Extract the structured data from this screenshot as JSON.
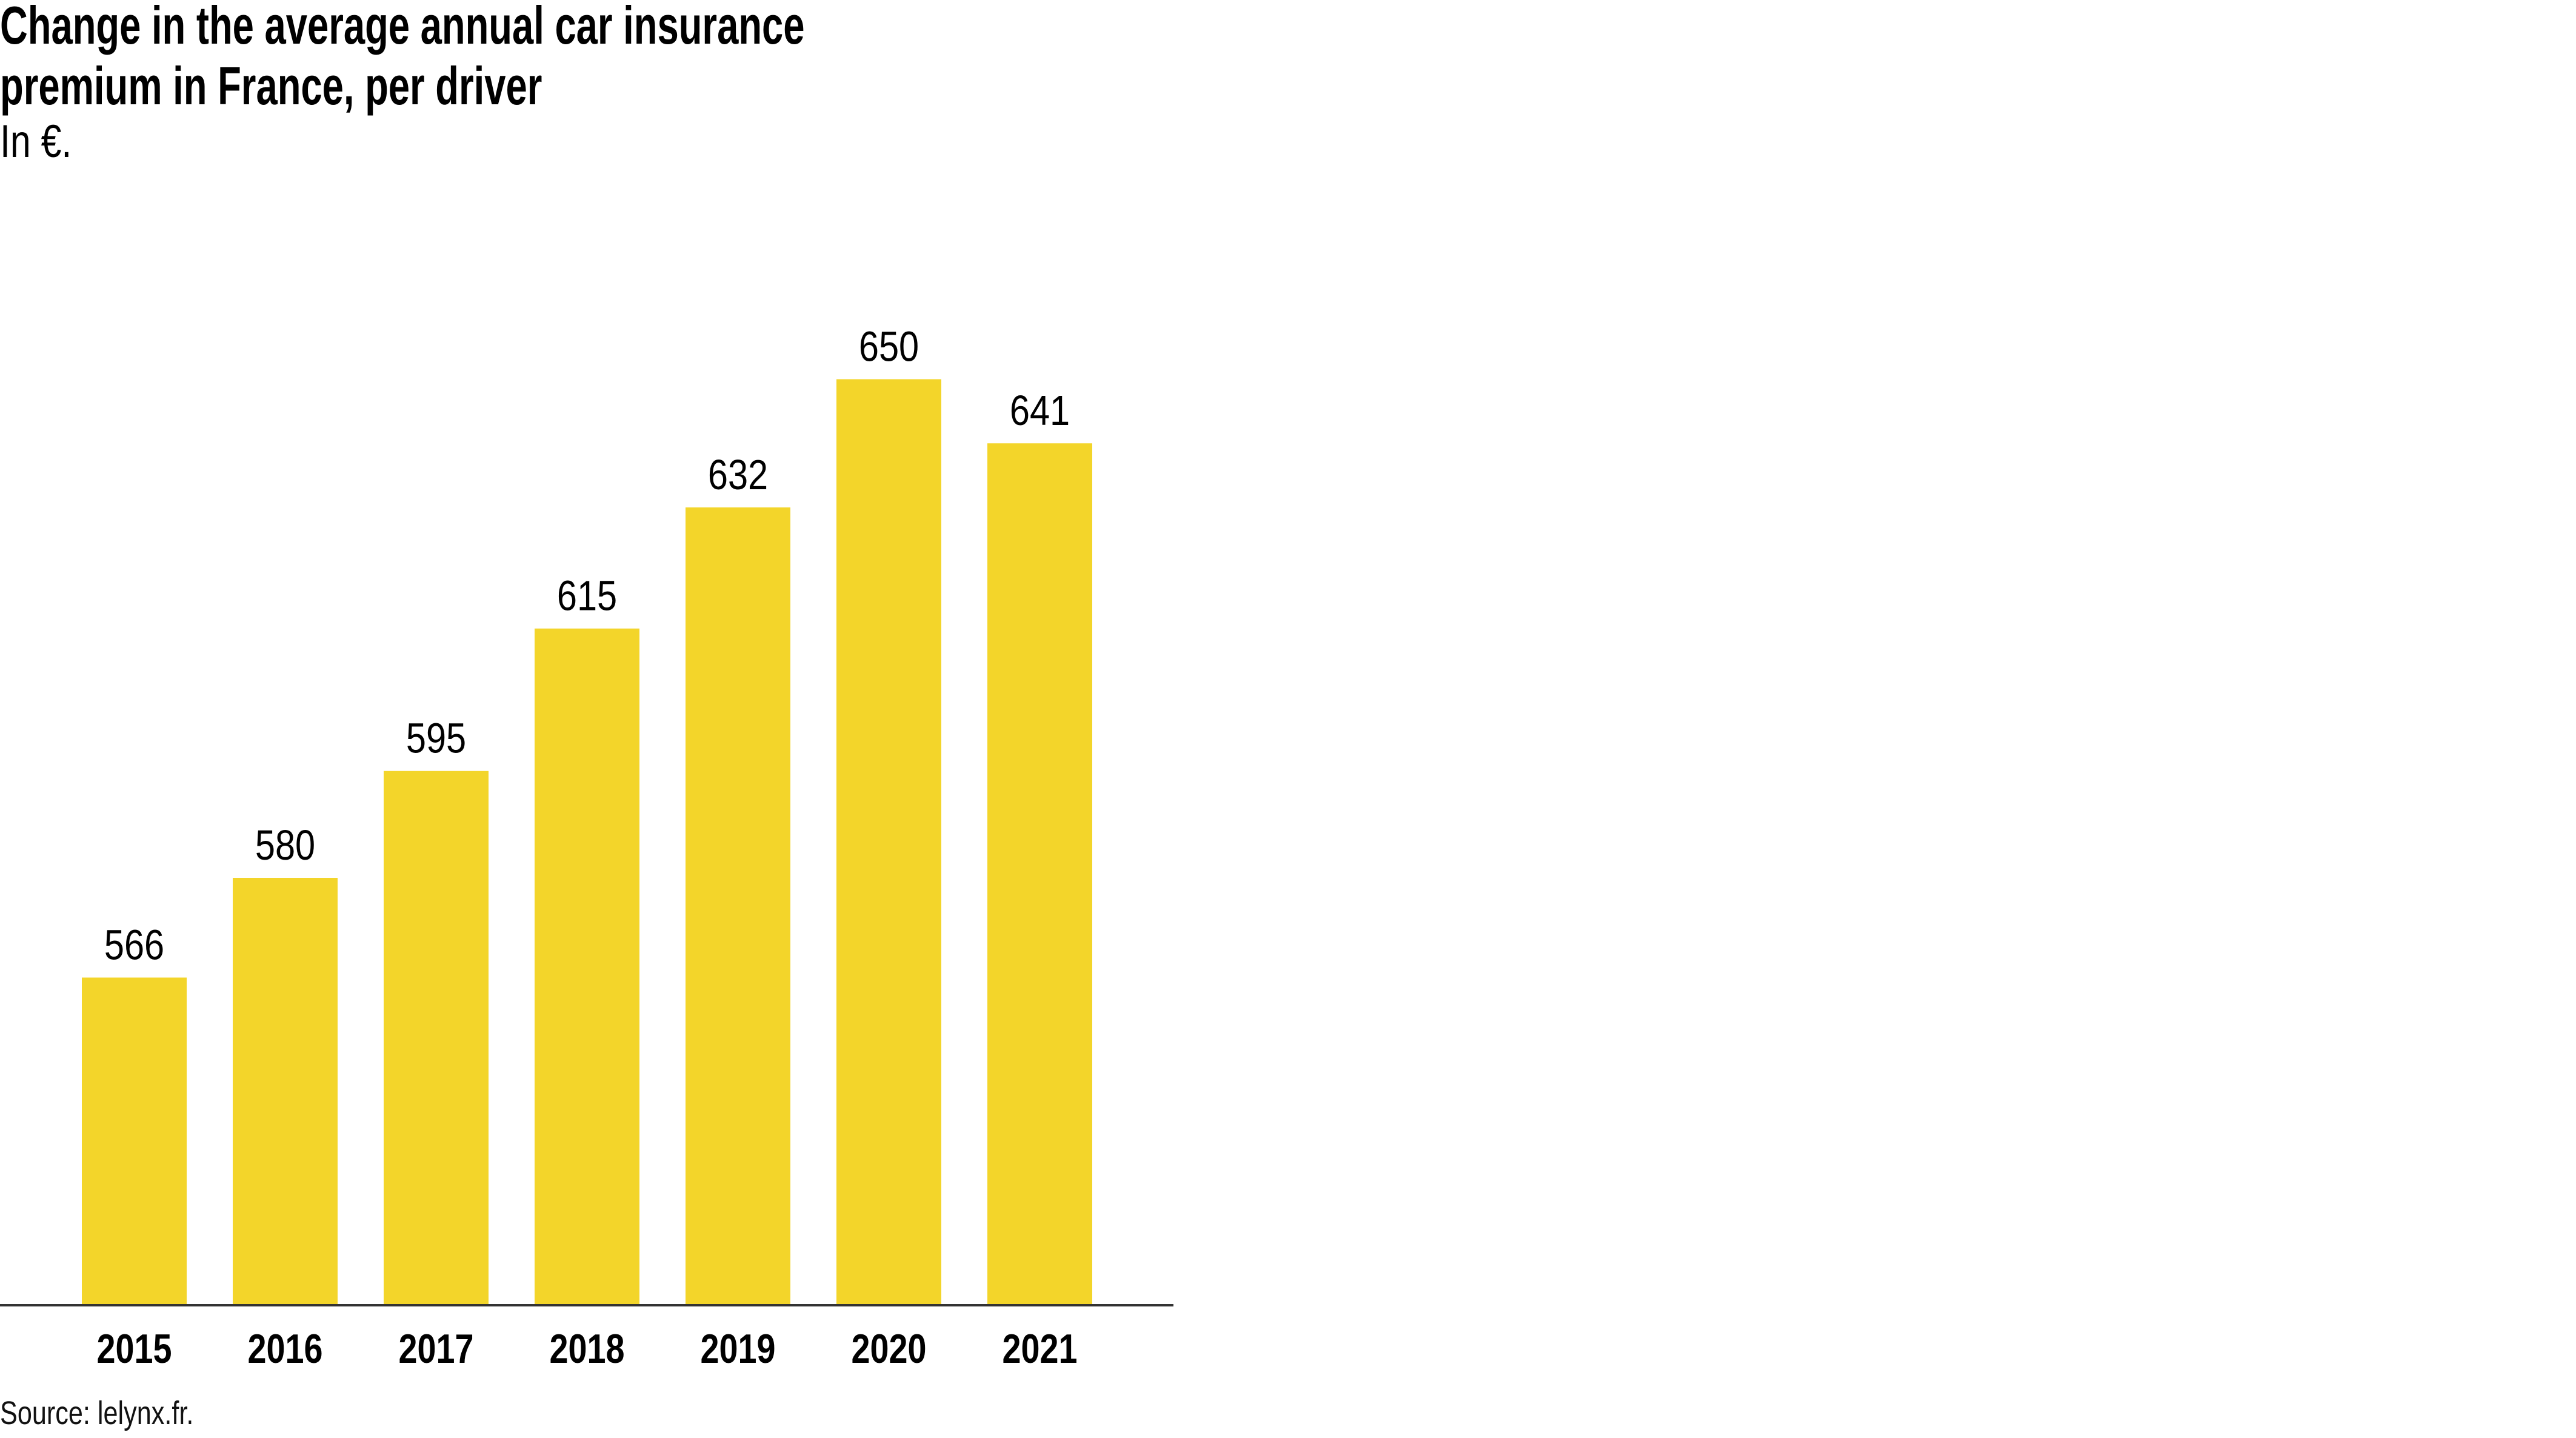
{
  "title_line1": "Change in the average annual car insurance",
  "title_line2": "premium in France, per driver",
  "subtitle": "In €.",
  "source": "Source: lelynx.fr.",
  "colors": {
    "bar": "#F3D52A",
    "axis": "#333333"
  },
  "chart_data": {
    "type": "bar",
    "title": "Change in the average annual car insurance premium in France, per driver",
    "subtitle": "In €.",
    "xlabel": "",
    "ylabel": "€",
    "categories": [
      "2015",
      "2016",
      "2017",
      "2018",
      "2019",
      "2020",
      "2021"
    ],
    "values": [
      566,
      580,
      595,
      615,
      632,
      650,
      641
    ],
    "ylim": [
      520,
      660
    ],
    "grid": false,
    "legend": "none"
  }
}
